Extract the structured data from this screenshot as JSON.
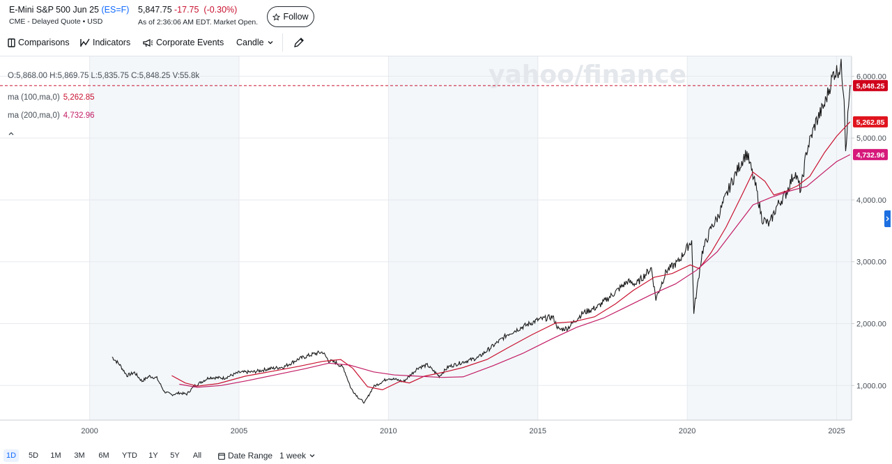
{
  "header": {
    "name": "E-Mini S&P 500 Jun 25",
    "ticker": "(ES=F)",
    "sub": "CME - Delayed Quote • USD",
    "price": "5,847.75",
    "change": "-17.75",
    "change_pct": "(-0.30%)",
    "as_of": "As of 2:36:06 AM EDT. Market Open.",
    "follow_label": "Follow"
  },
  "toolbar": {
    "comparisons": "Comparisons",
    "indicators": "Indicators",
    "corporate_events": "Corporate Events",
    "chart_type": "Candle"
  },
  "legend": {
    "ohlcv": "O:5,868.00  H:5,869.75  L:5,835.75  C:5,848.25  V:55.8k",
    "ma100_label": "ma (100,ma,0)",
    "ma100_value": "5,262.85",
    "ma200_label": "ma (200,ma,0)",
    "ma200_value": "4,732.96"
  },
  "watermark": "yahoo/finance",
  "colors": {
    "price_line": "#1a1a1a",
    "ma100": "#c8102e",
    "ma200": "#c21b64",
    "down": "#c8102e",
    "shade": "#f3f7fa",
    "link": "#0f69ff"
  },
  "chart_data": {
    "type": "line",
    "title": "E-Mini S&P 500 Jun 25 (ES=F)",
    "xlabel": "",
    "ylabel": "",
    "xlim": [
      1997.0,
      2025.5
    ],
    "ylim": [
      440,
      6320
    ],
    "x_ticks": [
      2000,
      2005,
      2010,
      2015,
      2020,
      2025
    ],
    "y_ticks": [
      1000,
      2000,
      3000,
      4000,
      5000,
      6000
    ],
    "y_tick_labels": [
      "1,000.00",
      "2,000.00",
      "3,000.00",
      "4,000.00",
      "5,000.00",
      "6,000.00"
    ],
    "x_tick_labels": [
      "2000",
      "2005",
      "2010",
      "2015",
      "2020",
      "2025"
    ],
    "shaded_bands": [
      [
        2000,
        2005
      ],
      [
        2010,
        2015
      ],
      [
        2020,
        2025.5
      ]
    ],
    "last_price": 5848.25,
    "last_price_label": "5,848.25",
    "ma100_last": 5262.85,
    "ma100_last_label": "5,262.85",
    "ma200_last": 4732.96,
    "ma200_last_label": "4,732.96",
    "series": [
      {
        "name": "ES=F",
        "x": [
          2000.75,
          2001.0,
          2001.25,
          2001.5,
          2001.75,
          2002.0,
          2002.25,
          2002.5,
          2002.75,
          2003.0,
          2003.25,
          2003.5,
          2004.0,
          2004.5,
          2005.0,
          2005.5,
          2006.0,
          2006.5,
          2007.0,
          2007.5,
          2007.8,
          2008.0,
          2008.25,
          2008.5,
          2008.75,
          2009.0,
          2009.2,
          2009.5,
          2010.0,
          2010.3,
          2010.5,
          2011.0,
          2011.3,
          2011.7,
          2012.0,
          2012.5,
          2013.0,
          2013.5,
          2014.0,
          2014.5,
          2015.0,
          2015.5,
          2015.7,
          2016.0,
          2016.5,
          2017.0,
          2017.5,
          2018.0,
          2018.3,
          2018.8,
          2018.95,
          2019.3,
          2019.7,
          2020.0,
          2020.15,
          2020.22,
          2020.5,
          2020.8,
          2021.0,
          2021.5,
          2021.9,
          2022.0,
          2022.3,
          2022.5,
          2022.75,
          2023.0,
          2023.3,
          2023.6,
          2023.8,
          2024.0,
          2024.3,
          2024.6,
          2024.9,
          2025.1,
          2025.15,
          2025.25,
          2025.3,
          2025.45
        ],
        "values": [
          1460,
          1340,
          1160,
          1210,
          1070,
          1150,
          1120,
          900,
          850,
          880,
          860,
          990,
          1130,
          1120,
          1210,
          1220,
          1270,
          1300,
          1430,
          1510,
          1540,
          1400,
          1370,
          1280,
          950,
          800,
          720,
          980,
          1120,
          1090,
          1060,
          1290,
          1330,
          1150,
          1300,
          1380,
          1450,
          1640,
          1830,
          1950,
          2060,
          2110,
          1900,
          1930,
          2170,
          2270,
          2470,
          2680,
          2640,
          2900,
          2400,
          2850,
          3000,
          3230,
          3350,
          2190,
          3150,
          3550,
          3700,
          4300,
          4700,
          4750,
          4200,
          3700,
          3600,
          3900,
          4100,
          4450,
          4150,
          4800,
          5250,
          5550,
          6050,
          6120,
          6150,
          5700,
          4830,
          5850
        ]
      },
      {
        "name": "ma (100,ma,0)",
        "x": [
          2002.75,
          2003.2,
          2003.6,
          2004.3,
          2005.2,
          2006.0,
          2007.0,
          2007.8,
          2008.4,
          2008.8,
          2009.3,
          2009.8,
          2010.4,
          2010.7,
          2011.2,
          2011.9,
          2012.5,
          2013.3,
          2014.0,
          2014.8,
          2015.6,
          2016.2,
          2016.9,
          2017.6,
          2018.2,
          2018.9,
          2019.5,
          2020.1,
          2020.4,
          2020.8,
          2021.3,
          2021.8,
          2022.2,
          2022.6,
          2022.9,
          2023.3,
          2023.7,
          2024.1,
          2024.6,
          2025.0,
          2025.45
        ],
        "values": [
          1160,
          1040,
          990,
          1030,
          1150,
          1220,
          1310,
          1390,
          1420,
          1280,
          980,
          930,
          1070,
          1040,
          1150,
          1220,
          1290,
          1420,
          1610,
          1820,
          2010,
          2030,
          2110,
          2320,
          2540,
          2750,
          2810,
          2950,
          2890,
          3150,
          3560,
          4050,
          4450,
          4300,
          4080,
          4140,
          4230,
          4380,
          4770,
          5030,
          5262.85
        ]
      },
      {
        "name": "ma (200,ma,0)",
        "x": [
          2003.0,
          2003.6,
          2004.4,
          2005.3,
          2006.2,
          2007.2,
          2008.0,
          2008.7,
          2009.5,
          2010.2,
          2011.0,
          2011.8,
          2012.5,
          2013.5,
          2014.5,
          2015.5,
          2016.3,
          2017.2,
          2018.0,
          2018.8,
          2019.6,
          2020.3,
          2021.0,
          2021.6,
          2022.2,
          2022.8,
          2023.4,
          2024.0,
          2024.6,
          2025.0,
          2025.45
        ],
        "values": [
          1020,
          970,
          1000,
          1080,
          1170,
          1270,
          1360,
          1330,
          1220,
          1170,
          1150,
          1130,
          1140,
          1320,
          1520,
          1760,
          1940,
          2090,
          2280,
          2470,
          2640,
          2860,
          3160,
          3540,
          3920,
          4040,
          4140,
          4220,
          4460,
          4620,
          4732.96
        ]
      }
    ]
  },
  "ranges": [
    "1D",
    "5D",
    "1M",
    "3M",
    "6M",
    "YTD",
    "1Y",
    "5Y",
    "All"
  ],
  "range_active": "1D",
  "date_range_label": "Date Range",
  "interval_label": "1 week"
}
